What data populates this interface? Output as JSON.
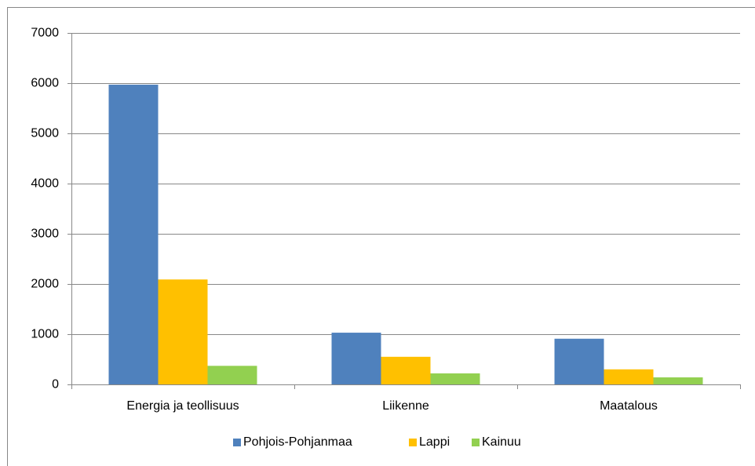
{
  "chart_data": {
    "type": "bar",
    "categories": [
      "Energia ja teollisuus",
      "Liikenne",
      "Maatalous"
    ],
    "series": [
      {
        "name": "Pohjois-Pohjanmaa",
        "color": "#4f81bd",
        "values": [
          5970,
          1030,
          910
        ]
      },
      {
        "name": "Lappi",
        "color": "#ffc000",
        "values": [
          2090,
          550,
          300
        ]
      },
      {
        "name": "Kainuu",
        "color": "#92d050",
        "values": [
          370,
          220,
          140
        ]
      }
    ],
    "ylim": [
      0,
      7000
    ],
    "yticks": [
      0,
      1000,
      2000,
      3000,
      4000,
      5000,
      6000,
      7000
    ],
    "grid": true,
    "legend": "bottom"
  }
}
